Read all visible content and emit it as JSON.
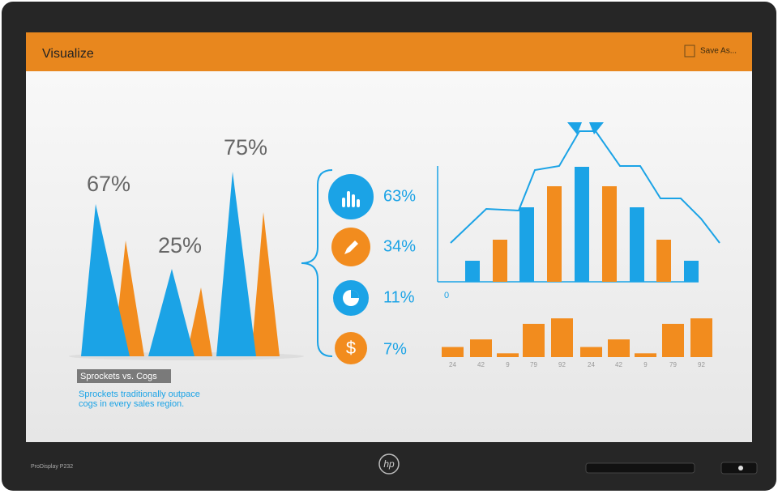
{
  "header": {
    "title": "Visualize",
    "action": "Save As..."
  },
  "peaks": {
    "labels": [
      "67%",
      "25%",
      "75%"
    ],
    "caption": "Sprockets vs. Cogs",
    "description_lines": [
      "Sprockets traditionally outpace",
      "cogs in every sales region."
    ]
  },
  "stats": [
    "63%",
    "34%",
    "11%",
    "7%"
  ],
  "trend_chart": {
    "origin_label": "0"
  },
  "sales_bars": {
    "values": [
      24,
      42,
      9,
      79,
      92,
      24,
      42,
      9,
      79,
      92
    ]
  },
  "bezel": {
    "model": "ProDisplay P232",
    "logo": "hp"
  }
}
